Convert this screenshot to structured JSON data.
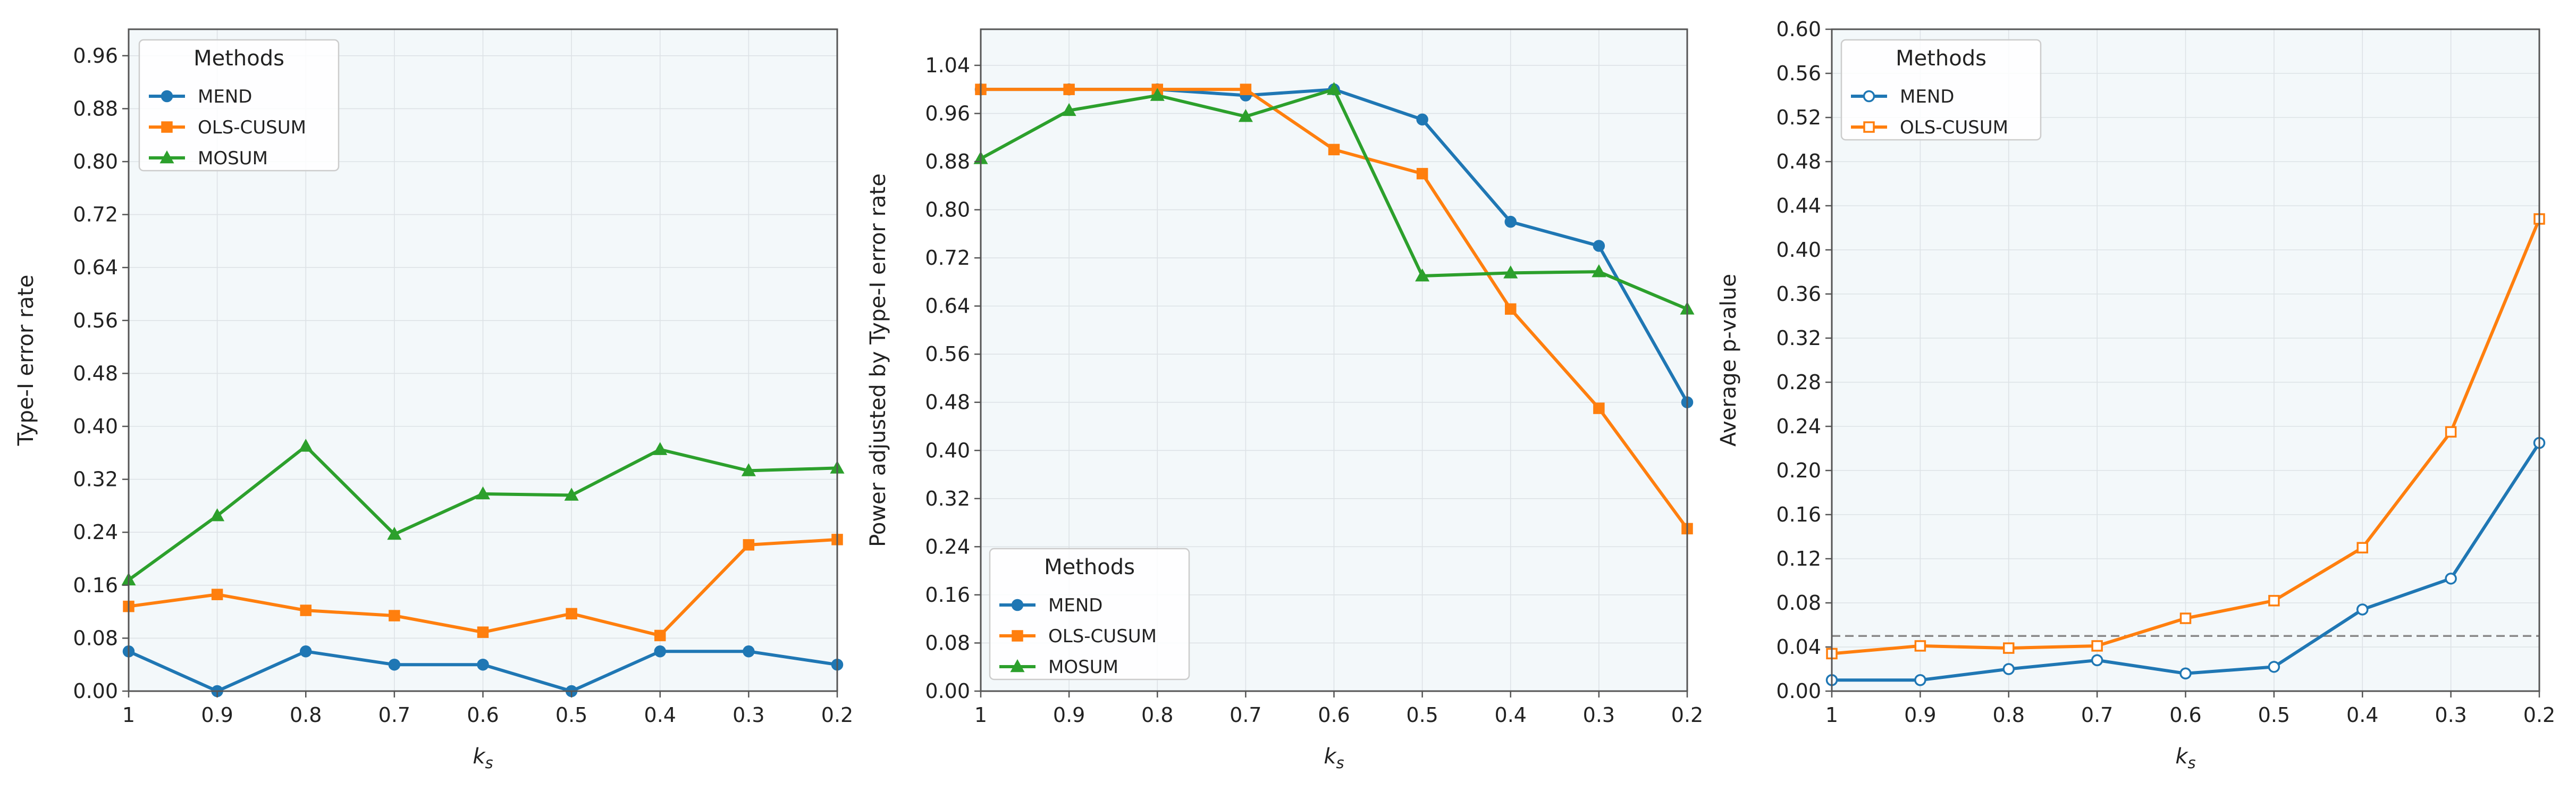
{
  "chart_data": [
    {
      "type": "line",
      "categories": [
        "1",
        "0.9",
        "0.8",
        "0.7",
        "0.6",
        "0.5",
        "0.4",
        "0.3",
        "0.2"
      ],
      "xlabel_base": "k",
      "xlabel_sub": "s",
      "ylabel": "Type-I error rate",
      "ylim": [
        0,
        1.0
      ],
      "yticks": [
        0.0,
        0.08,
        0.16,
        0.24,
        0.32,
        0.4,
        0.48,
        0.56,
        0.64,
        0.72,
        0.8,
        0.88,
        0.96
      ],
      "ytick_labels": [
        "0.00",
        "0.08",
        "0.16",
        "0.24",
        "0.32",
        "0.40",
        "0.48",
        "0.56",
        "0.64",
        "0.72",
        "0.80",
        "0.88",
        "0.96"
      ],
      "grid": true,
      "legend": {
        "title": "Methods",
        "position": "top-left"
      },
      "series": [
        {
          "name": "MEND",
          "color": "#1f77b4",
          "marker": "circle",
          "filled": true,
          "values": [
            0.06,
            0.0,
            0.06,
            0.04,
            0.04,
            0.0,
            0.06,
            0.06,
            0.04
          ]
        },
        {
          "name": "OLS-CUSUM",
          "color": "#ff7f0e",
          "marker": "square",
          "filled": true,
          "values": [
            0.128,
            0.146,
            0.122,
            0.114,
            0.089,
            0.117,
            0.084,
            0.221,
            0.229
          ]
        },
        {
          "name": "MOSUM",
          "color": "#2ca02c",
          "marker": "triangle",
          "filled": true,
          "values": [
            0.168,
            0.265,
            0.37,
            0.237,
            0.298,
            0.296,
            0.365,
            0.333,
            0.337
          ]
        }
      ]
    },
    {
      "type": "line",
      "categories": [
        "1",
        "0.9",
        "0.8",
        "0.7",
        "0.6",
        "0.5",
        "0.4",
        "0.3",
        "0.2"
      ],
      "xlabel_base": "k",
      "xlabel_sub": "s",
      "ylabel": "Power adjusted by Type-I error rate",
      "ylim": [
        0,
        1.1
      ],
      "yticks": [
        0.0,
        0.08,
        0.16,
        0.24,
        0.32,
        0.4,
        0.48,
        0.56,
        0.64,
        0.72,
        0.8,
        0.88,
        0.96,
        1.04
      ],
      "ytick_labels": [
        "0.00",
        "0.08",
        "0.16",
        "0.24",
        "0.32",
        "0.40",
        "0.48",
        "0.56",
        "0.64",
        "0.72",
        "0.80",
        "0.88",
        "0.96",
        "1.04"
      ],
      "grid": true,
      "legend": {
        "title": "Methods",
        "position": "bottom-left"
      },
      "series": [
        {
          "name": "MEND",
          "color": "#1f77b4",
          "marker": "circle",
          "filled": true,
          "values": [
            1.0,
            1.0,
            1.0,
            0.99,
            1.0,
            0.95,
            0.78,
            0.74,
            0.48
          ]
        },
        {
          "name": "OLS-CUSUM",
          "color": "#ff7f0e",
          "marker": "square",
          "filled": true,
          "values": [
            1.0,
            1.0,
            1.0,
            1.0,
            0.9,
            0.86,
            0.635,
            0.47,
            0.27
          ]
        },
        {
          "name": "MOSUM",
          "color": "#2ca02c",
          "marker": "triangle",
          "filled": true,
          "values": [
            0.885,
            0.965,
            0.99,
            0.955,
            1.0,
            0.69,
            0.695,
            0.697,
            0.635
          ]
        }
      ]
    },
    {
      "type": "line",
      "categories": [
        "1",
        "0.9",
        "0.8",
        "0.7",
        "0.6",
        "0.5",
        "0.4",
        "0.3",
        "0.2"
      ],
      "xlabel_base": "k",
      "xlabel_sub": "s",
      "ylabel": "Average p-value",
      "ylim": [
        0,
        0.6
      ],
      "yticks": [
        0.0,
        0.04,
        0.08,
        0.12,
        0.16,
        0.2,
        0.24,
        0.28,
        0.32,
        0.36,
        0.4,
        0.44,
        0.48,
        0.52,
        0.56,
        0.6
      ],
      "ytick_labels": [
        "0.00",
        "0.04",
        "0.08",
        "0.12",
        "0.16",
        "0.20",
        "0.24",
        "0.28",
        "0.32",
        "0.36",
        "0.40",
        "0.44",
        "0.48",
        "0.52",
        "0.56",
        "0.60"
      ],
      "grid": true,
      "reference_line": {
        "y": 0.05,
        "color": "#888888",
        "style": "dashed"
      },
      "legend": {
        "title": "Methods",
        "position": "top-left"
      },
      "series": [
        {
          "name": "MEND",
          "color": "#1f77b4",
          "marker": "circle",
          "filled": false,
          "values": [
            0.01,
            0.01,
            0.02,
            0.028,
            0.016,
            0.022,
            0.074,
            0.102,
            0.225
          ]
        },
        {
          "name": "OLS-CUSUM",
          "color": "#ff7f0e",
          "marker": "square",
          "filled": false,
          "values": [
            0.034,
            0.041,
            0.039,
            0.041,
            0.066,
            0.082,
            0.13,
            0.235,
            0.428
          ]
        }
      ]
    }
  ]
}
